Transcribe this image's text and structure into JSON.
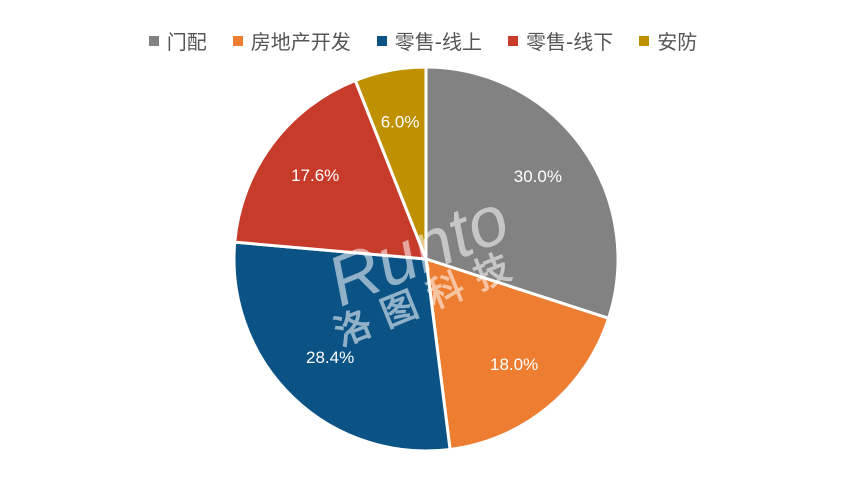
{
  "chart_data": {
    "type": "pie",
    "categories": [
      "门配",
      "房地产开发",
      "零售-线上",
      "零售-线下",
      "安防"
    ],
    "values": [
      30.0,
      18.0,
      28.4,
      17.6,
      6.0
    ],
    "value_labels": [
      "30.0%",
      "18.0%",
      "28.4%",
      "17.6%",
      "6.0%"
    ],
    "colors": [
      "#828282",
      "#ED7D31",
      "#0B5285",
      "#C73B2B",
      "#BF9000"
    ],
    "legend": "top",
    "watermark": [
      "Runto",
      "洛图科技"
    ]
  }
}
